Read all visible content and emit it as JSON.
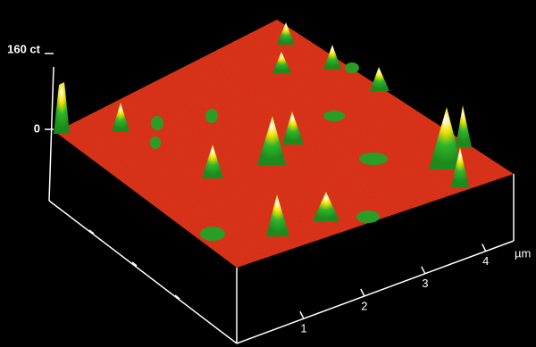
{
  "chart_data": {
    "type": "surface3d",
    "zlim": [
      0,
      160
    ],
    "zticks": [
      0,
      {
        "value": 160,
        "label": "160 ct"
      }
    ],
    "xlim": [
      0,
      4.5
    ],
    "xticks": [
      1,
      2,
      3,
      4
    ],
    "x_label": "µm"
  }
}
